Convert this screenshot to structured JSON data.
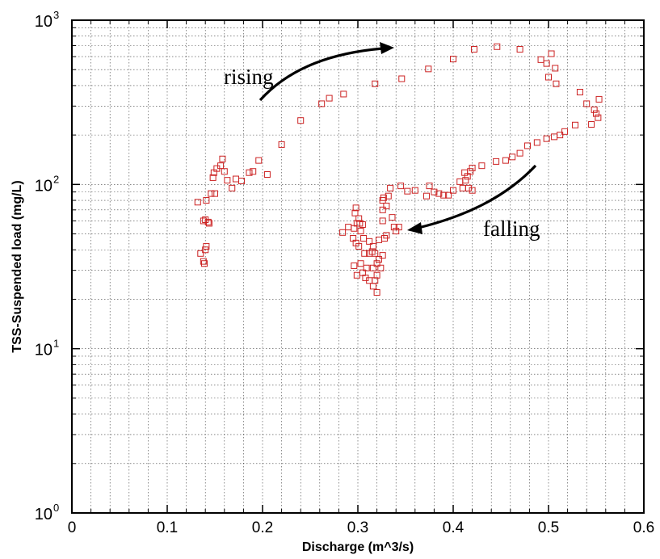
{
  "chart_data": {
    "type": "scatter",
    "title": "",
    "xlabel": "Discharge (m^3/s)",
    "ylabel": "TSS-Suspended load (mg/L)",
    "xlim": [
      0,
      0.6
    ],
    "ylim": [
      1,
      1000
    ],
    "yscale": "log",
    "grid": true,
    "x_ticks": [
      "0",
      "0.1",
      "0.2",
      "0.3",
      "0.4",
      "0.5",
      "0.6"
    ],
    "y_ticks": [
      {
        "base": "10",
        "exp": "0"
      },
      {
        "base": "10",
        "exp": "1"
      },
      {
        "base": "10",
        "exp": "2"
      },
      {
        "base": "10",
        "exp": "3"
      }
    ],
    "marker": "open-square",
    "marker_color": "#cc2222",
    "annotations": [
      {
        "text": "rising"
      },
      {
        "text": "falling"
      }
    ],
    "points": [
      [
        0.132,
        78
      ],
      [
        0.135,
        38
      ],
      [
        0.138,
        34
      ],
      [
        0.139,
        33
      ],
      [
        0.14,
        40
      ],
      [
        0.141,
        42
      ],
      [
        0.138,
        60
      ],
      [
        0.14,
        61
      ],
      [
        0.141,
        80
      ],
      [
        0.143,
        59
      ],
      [
        0.144,
        58
      ],
      [
        0.146,
        88
      ],
      [
        0.148,
        110
      ],
      [
        0.149,
        118
      ],
      [
        0.152,
        125
      ],
      [
        0.15,
        88
      ],
      [
        0.156,
        130
      ],
      [
        0.158,
        143
      ],
      [
        0.16,
        120
      ],
      [
        0.163,
        106
      ],
      [
        0.168,
        95
      ],
      [
        0.172,
        108
      ],
      [
        0.178,
        105
      ],
      [
        0.186,
        118
      ],
      [
        0.19,
        120
      ],
      [
        0.196,
        140
      ],
      [
        0.205,
        115
      ],
      [
        0.22,
        175
      ],
      [
        0.24,
        245
      ],
      [
        0.262,
        310
      ],
      [
        0.27,
        335
      ],
      [
        0.285,
        355
      ],
      [
        0.318,
        410
      ],
      [
        0.346,
        440
      ],
      [
        0.374,
        505
      ],
      [
        0.4,
        580
      ],
      [
        0.422,
        665
      ],
      [
        0.446,
        690
      ],
      [
        0.47,
        665
      ],
      [
        0.492,
        575
      ],
      [
        0.498,
        545
      ],
      [
        0.503,
        625
      ],
      [
        0.507,
        510
      ],
      [
        0.5,
        450
      ],
      [
        0.508,
        410
      ],
      [
        0.533,
        365
      ],
      [
        0.54,
        310
      ],
      [
        0.548,
        285
      ],
      [
        0.55,
        270
      ],
      [
        0.553,
        330
      ],
      [
        0.552,
        255
      ],
      [
        0.545,
        232
      ],
      [
        0.528,
        230
      ],
      [
        0.517,
        210
      ],
      [
        0.512,
        200
      ],
      [
        0.506,
        195
      ],
      [
        0.498,
        190
      ],
      [
        0.488,
        180
      ],
      [
        0.478,
        172
      ],
      [
        0.47,
        155
      ],
      [
        0.462,
        147
      ],
      [
        0.455,
        140
      ],
      [
        0.445,
        138
      ],
      [
        0.43,
        130
      ],
      [
        0.42,
        126
      ],
      [
        0.418,
        120
      ],
      [
        0.415,
        112
      ],
      [
        0.412,
        118
      ],
      [
        0.413,
        106
      ],
      [
        0.407,
        104
      ],
      [
        0.41,
        95
      ],
      [
        0.416,
        95
      ],
      [
        0.42,
        92
      ],
      [
        0.4,
        92
      ],
      [
        0.395,
        86
      ],
      [
        0.39,
        86
      ],
      [
        0.385,
        88
      ],
      [
        0.38,
        90
      ],
      [
        0.375,
        98
      ],
      [
        0.372,
        85
      ],
      [
        0.36,
        92
      ],
      [
        0.352,
        91
      ],
      [
        0.345,
        98
      ],
      [
        0.334,
        95
      ],
      [
        0.332,
        85
      ],
      [
        0.327,
        83
      ],
      [
        0.326,
        80
      ],
      [
        0.33,
        74
      ],
      [
        0.326,
        70
      ],
      [
        0.326,
        60
      ],
      [
        0.336,
        63
      ],
      [
        0.338,
        55
      ],
      [
        0.34,
        52
      ],
      [
        0.343,
        55
      ],
      [
        0.298,
        72
      ],
      [
        0.297,
        67
      ],
      [
        0.299,
        58
      ],
      [
        0.302,
        58
      ],
      [
        0.301,
        62
      ],
      [
        0.296,
        54
      ],
      [
        0.303,
        52
      ],
      [
        0.305,
        57
      ],
      [
        0.29,
        55
      ],
      [
        0.284,
        51
      ],
      [
        0.295,
        47
      ],
      [
        0.298,
        44
      ],
      [
        0.301,
        42
      ],
      [
        0.306,
        47
      ],
      [
        0.312,
        45
      ],
      [
        0.316,
        42
      ],
      [
        0.322,
        46
      ],
      [
        0.328,
        47
      ],
      [
        0.33,
        49
      ],
      [
        0.307,
        38
      ],
      [
        0.312,
        38
      ],
      [
        0.315,
        39
      ],
      [
        0.318,
        38
      ],
      [
        0.326,
        37
      ],
      [
        0.296,
        32
      ],
      [
        0.303,
        33
      ],
      [
        0.309,
        31
      ],
      [
        0.316,
        31
      ],
      [
        0.32,
        33
      ],
      [
        0.324,
        31
      ],
      [
        0.322,
        35
      ],
      [
        0.299,
        28
      ],
      [
        0.305,
        29
      ],
      [
        0.308,
        27
      ],
      [
        0.312,
        26
      ],
      [
        0.318,
        26
      ],
      [
        0.32,
        28
      ],
      [
        0.316,
        24
      ],
      [
        0.32,
        22
      ]
    ]
  }
}
